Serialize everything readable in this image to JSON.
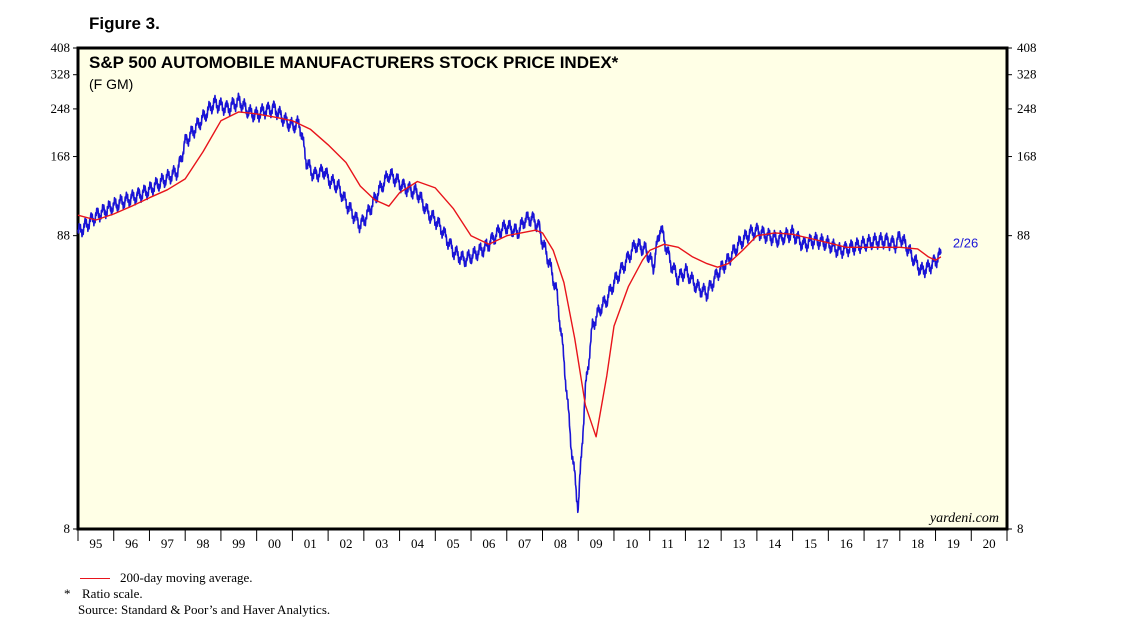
{
  "figure_label": "Figure 3.",
  "chart_data": {
    "type": "line",
    "title": "S&P 500 AUTOMOBILE MANUFACTURERS STOCK PRICE INDEX*",
    "subtitle": "(F GM)",
    "scale": "log",
    "ylim": [
      8,
      408
    ],
    "y_ticks": [
      8,
      88,
      168,
      248,
      328,
      408
    ],
    "x_tick_labels": [
      "95",
      "96",
      "97",
      "98",
      "99",
      "00",
      "01",
      "02",
      "03",
      "04",
      "05",
      "06",
      "07",
      "08",
      "09",
      "10",
      "11",
      "12",
      "13",
      "14",
      "15",
      "16",
      "17",
      "18",
      "19",
      "20"
    ],
    "xlim": [
      1995.0,
      2021.0
    ],
    "end_label": "2/26",
    "watermark": "yardeni.com",
    "series": [
      {
        "name": "S&P 500 Automobile Manufacturers",
        "color": "#1a14d6",
        "x": [
          1995.0,
          1995.5,
          1996.0,
          1996.5,
          1997.0,
          1997.4,
          1997.8,
          1998.0,
          1998.5,
          1998.8,
          1999.0,
          1999.2,
          1999.5,
          1999.8,
          2000.0,
          2000.2,
          2000.5,
          2000.8,
          2001.0,
          2001.2,
          2001.4,
          2001.6,
          2001.9,
          2002.0,
          2002.3,
          2002.5,
          2002.7,
          2002.9,
          2003.1,
          2003.4,
          2003.7,
          2003.9,
          2004.0,
          2004.2,
          2004.5,
          2004.8,
          2005.0,
          2005.2,
          2005.5,
          2005.8,
          2006.0,
          2006.4,
          2006.8,
          2007.0,
          2007.3,
          2007.5,
          2007.7,
          2007.9,
          2008.0,
          2008.2,
          2008.4,
          2008.6,
          2008.8,
          2009.0,
          2009.2,
          2009.4,
          2009.6,
          2009.8,
          2010.0,
          2010.3,
          2010.6,
          2010.9,
          2011.1,
          2011.3,
          2011.6,
          2011.8,
          2012.0,
          2012.3,
          2012.6,
          2012.9,
          2013.2,
          2013.5,
          2013.8,
          2014.0,
          2014.3,
          2014.6,
          2015.0,
          2015.3,
          2015.6,
          2016.0,
          2016.3,
          2016.6,
          2017.0,
          2017.3,
          2017.6,
          2017.9,
          2018.0,
          2018.2,
          2018.4,
          2018.6,
          2018.8,
          2019.0,
          2019.15
        ],
        "values": [
          90,
          104,
          112,
          120,
          128,
          138,
          150,
          190,
          230,
          260,
          255,
          250,
          265,
          240,
          235,
          245,
          250,
          225,
          215,
          220,
          160,
          145,
          150,
          140,
          130,
          115,
          105,
          96,
          105,
          125,
          145,
          140,
          135,
          130,
          125,
          105,
          100,
          92,
          78,
          72,
          74,
          80,
          92,
          95,
          90,
          100,
          102,
          95,
          84,
          70,
          55,
          32,
          16,
          9.5,
          25,
          42,
          48,
          52,
          60,
          70,
          82,
          78,
          68,
          95,
          70,
          62,
          66,
          58,
          55,
          65,
          72,
          82,
          90,
          92,
          88,
          85,
          90,
          82,
          85,
          82,
          78,
          80,
          82,
          84,
          85,
          82,
          88,
          80,
          72,
          66,
          68,
          72,
          76
        ]
      },
      {
        "name": "200-day moving average.",
        "color": "#e8141b",
        "x": [
          1995.0,
          1995.5,
          1996.0,
          1996.5,
          1997.0,
          1997.5,
          1998.0,
          1998.5,
          1999.0,
          1999.5,
          2000.0,
          2000.5,
          2001.0,
          2001.5,
          2002.0,
          2002.5,
          2002.9,
          2003.3,
          2003.7,
          2004.0,
          2004.5,
          2005.0,
          2005.5,
          2006.0,
          2006.5,
          2007.0,
          2007.4,
          2007.8,
          2008.0,
          2008.3,
          2008.6,
          2008.9,
          2009.2,
          2009.5,
          2009.8,
          2010.0,
          2010.4,
          2010.8,
          2011.0,
          2011.4,
          2011.8,
          2012.2,
          2012.6,
          2012.9,
          2013.2,
          2013.6,
          2014.0,
          2014.5,
          2015.0,
          2015.5,
          2016.0,
          2016.5,
          2017.0,
          2017.5,
          2018.0,
          2018.5,
          2018.8,
          2019.0,
          2019.15
        ],
        "values": [
          104,
          100,
          105,
          112,
          120,
          128,
          140,
          175,
          225,
          242,
          238,
          232,
          225,
          210,
          185,
          160,
          132,
          118,
          112,
          125,
          137,
          130,
          110,
          88,
          82,
          88,
          90,
          92,
          90,
          78,
          60,
          38,
          22,
          17,
          28,
          42,
          58,
          72,
          78,
          82,
          80,
          74,
          70,
          68,
          70,
          78,
          88,
          90,
          89,
          86,
          83,
          80,
          80,
          80,
          80,
          79,
          74,
          72,
          74
        ]
      }
    ]
  },
  "legend": {
    "line_label": "200-day moving average.",
    "note_marker": "*",
    "note_text": "Ratio scale.",
    "source": "Source: Standard & Poor’s and Haver Analytics."
  }
}
